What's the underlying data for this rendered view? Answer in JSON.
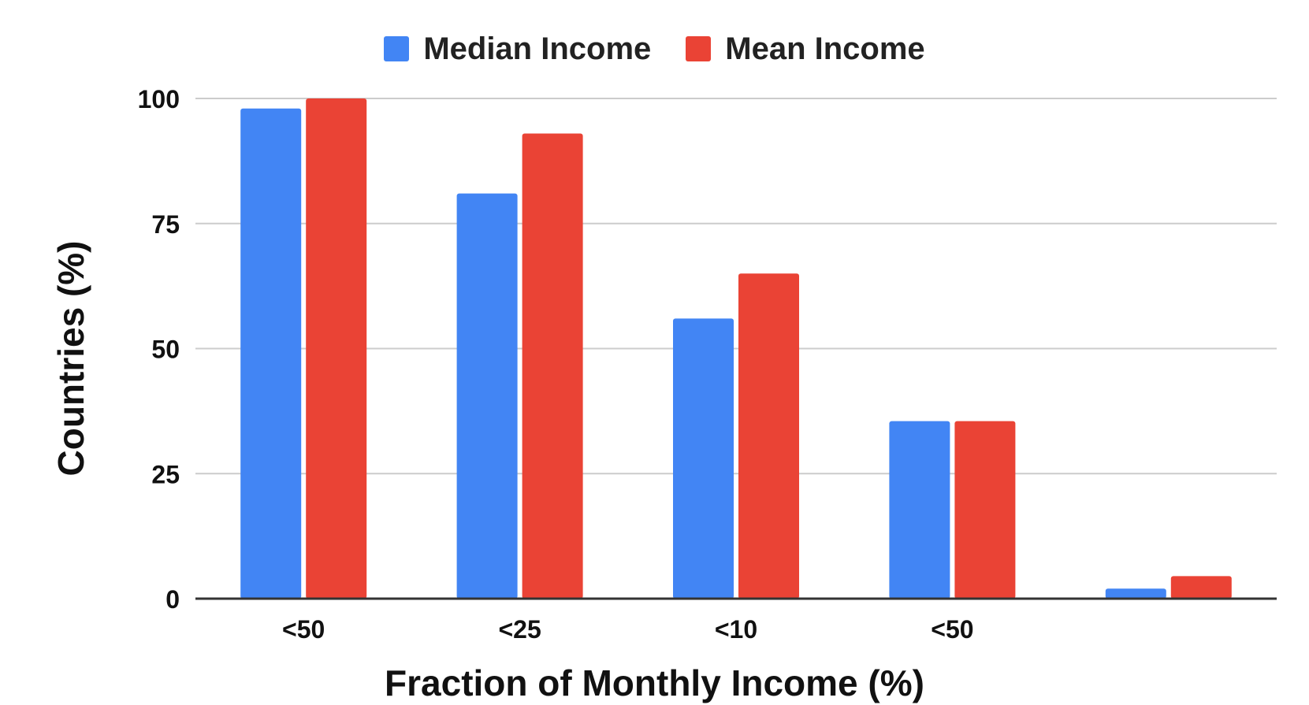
{
  "chart_data": {
    "type": "bar",
    "title": "",
    "xlabel": "Fraction of Monthly Income (%)",
    "ylabel": "Countries (%)",
    "categories": [
      "<50",
      "<25",
      "<10",
      "<50",
      ""
    ],
    "series": [
      {
        "name": "Median Income",
        "color": "#4285f4",
        "values": [
          98,
          81,
          56,
          35.5,
          2
        ]
      },
      {
        "name": "Mean Income",
        "color": "#ea4335",
        "values": [
          100,
          93,
          65,
          35.5,
          4.5
        ]
      }
    ],
    "ylim": [
      0,
      100
    ],
    "yticks": [
      "0",
      "25",
      "50",
      "75",
      "100"
    ],
    "grid": true,
    "legend_position": "top-center"
  }
}
